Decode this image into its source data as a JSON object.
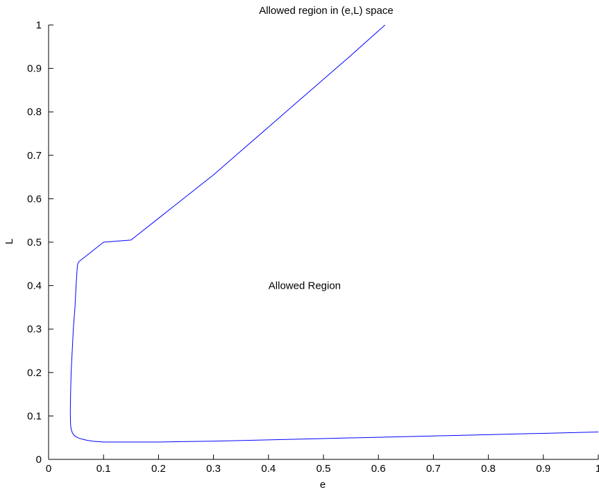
{
  "chart_data": {
    "type": "line",
    "title": "Allowed region in (e,L) space",
    "xlabel": "e",
    "ylabel": "L",
    "xlim": [
      0,
      1
    ],
    "ylim": [
      0,
      1
    ],
    "xticks": [
      "0",
      "0.1",
      "0.2",
      "0.3",
      "0.4",
      "0.5",
      "0.6",
      "0.7",
      "0.8",
      "0.9",
      "1"
    ],
    "yticks": [
      "0",
      "0.1",
      "0.2",
      "0.3",
      "0.4",
      "0.5",
      "0.6",
      "0.7",
      "0.8",
      "0.9",
      "1"
    ],
    "grid": false,
    "series": [
      {
        "color": "#0000ff",
        "x": [
          0.612,
          0.55,
          0.5,
          0.45,
          0.4,
          0.35,
          0.3,
          0.25,
          0.2,
          0.15,
          0.1,
          0.08,
          0.065,
          0.055,
          0.053,
          0.052,
          0.05,
          0.048,
          0.045,
          0.043,
          0.041,
          0.04,
          0.0395,
          0.04,
          0.041,
          0.043,
          0.046,
          0.05,
          0.055,
          0.06,
          0.07,
          0.08,
          0.1,
          0.15,
          0.2,
          0.3,
          0.4,
          0.5,
          0.6,
          0.7,
          0.8,
          0.9,
          1.0
        ],
        "y": [
          1.0,
          0.93,
          0.875,
          0.82,
          0.765,
          0.71,
          0.655,
          0.605,
          0.555,
          0.505,
          0.5,
          0.48,
          0.465,
          0.455,
          0.45,
          0.44,
          0.4,
          0.35,
          0.3,
          0.25,
          0.2,
          0.15,
          0.11,
          0.08,
          0.07,
          0.062,
          0.056,
          0.052,
          0.049,
          0.047,
          0.044,
          0.042,
          0.04,
          0.04,
          0.04,
          0.042,
          0.045,
          0.048,
          0.051,
          0.054,
          0.057,
          0.06,
          0.063
        ]
      }
    ],
    "annotations": [
      {
        "text": "Allowed Region",
        "x": 0.4,
        "y": 0.4
      }
    ]
  }
}
